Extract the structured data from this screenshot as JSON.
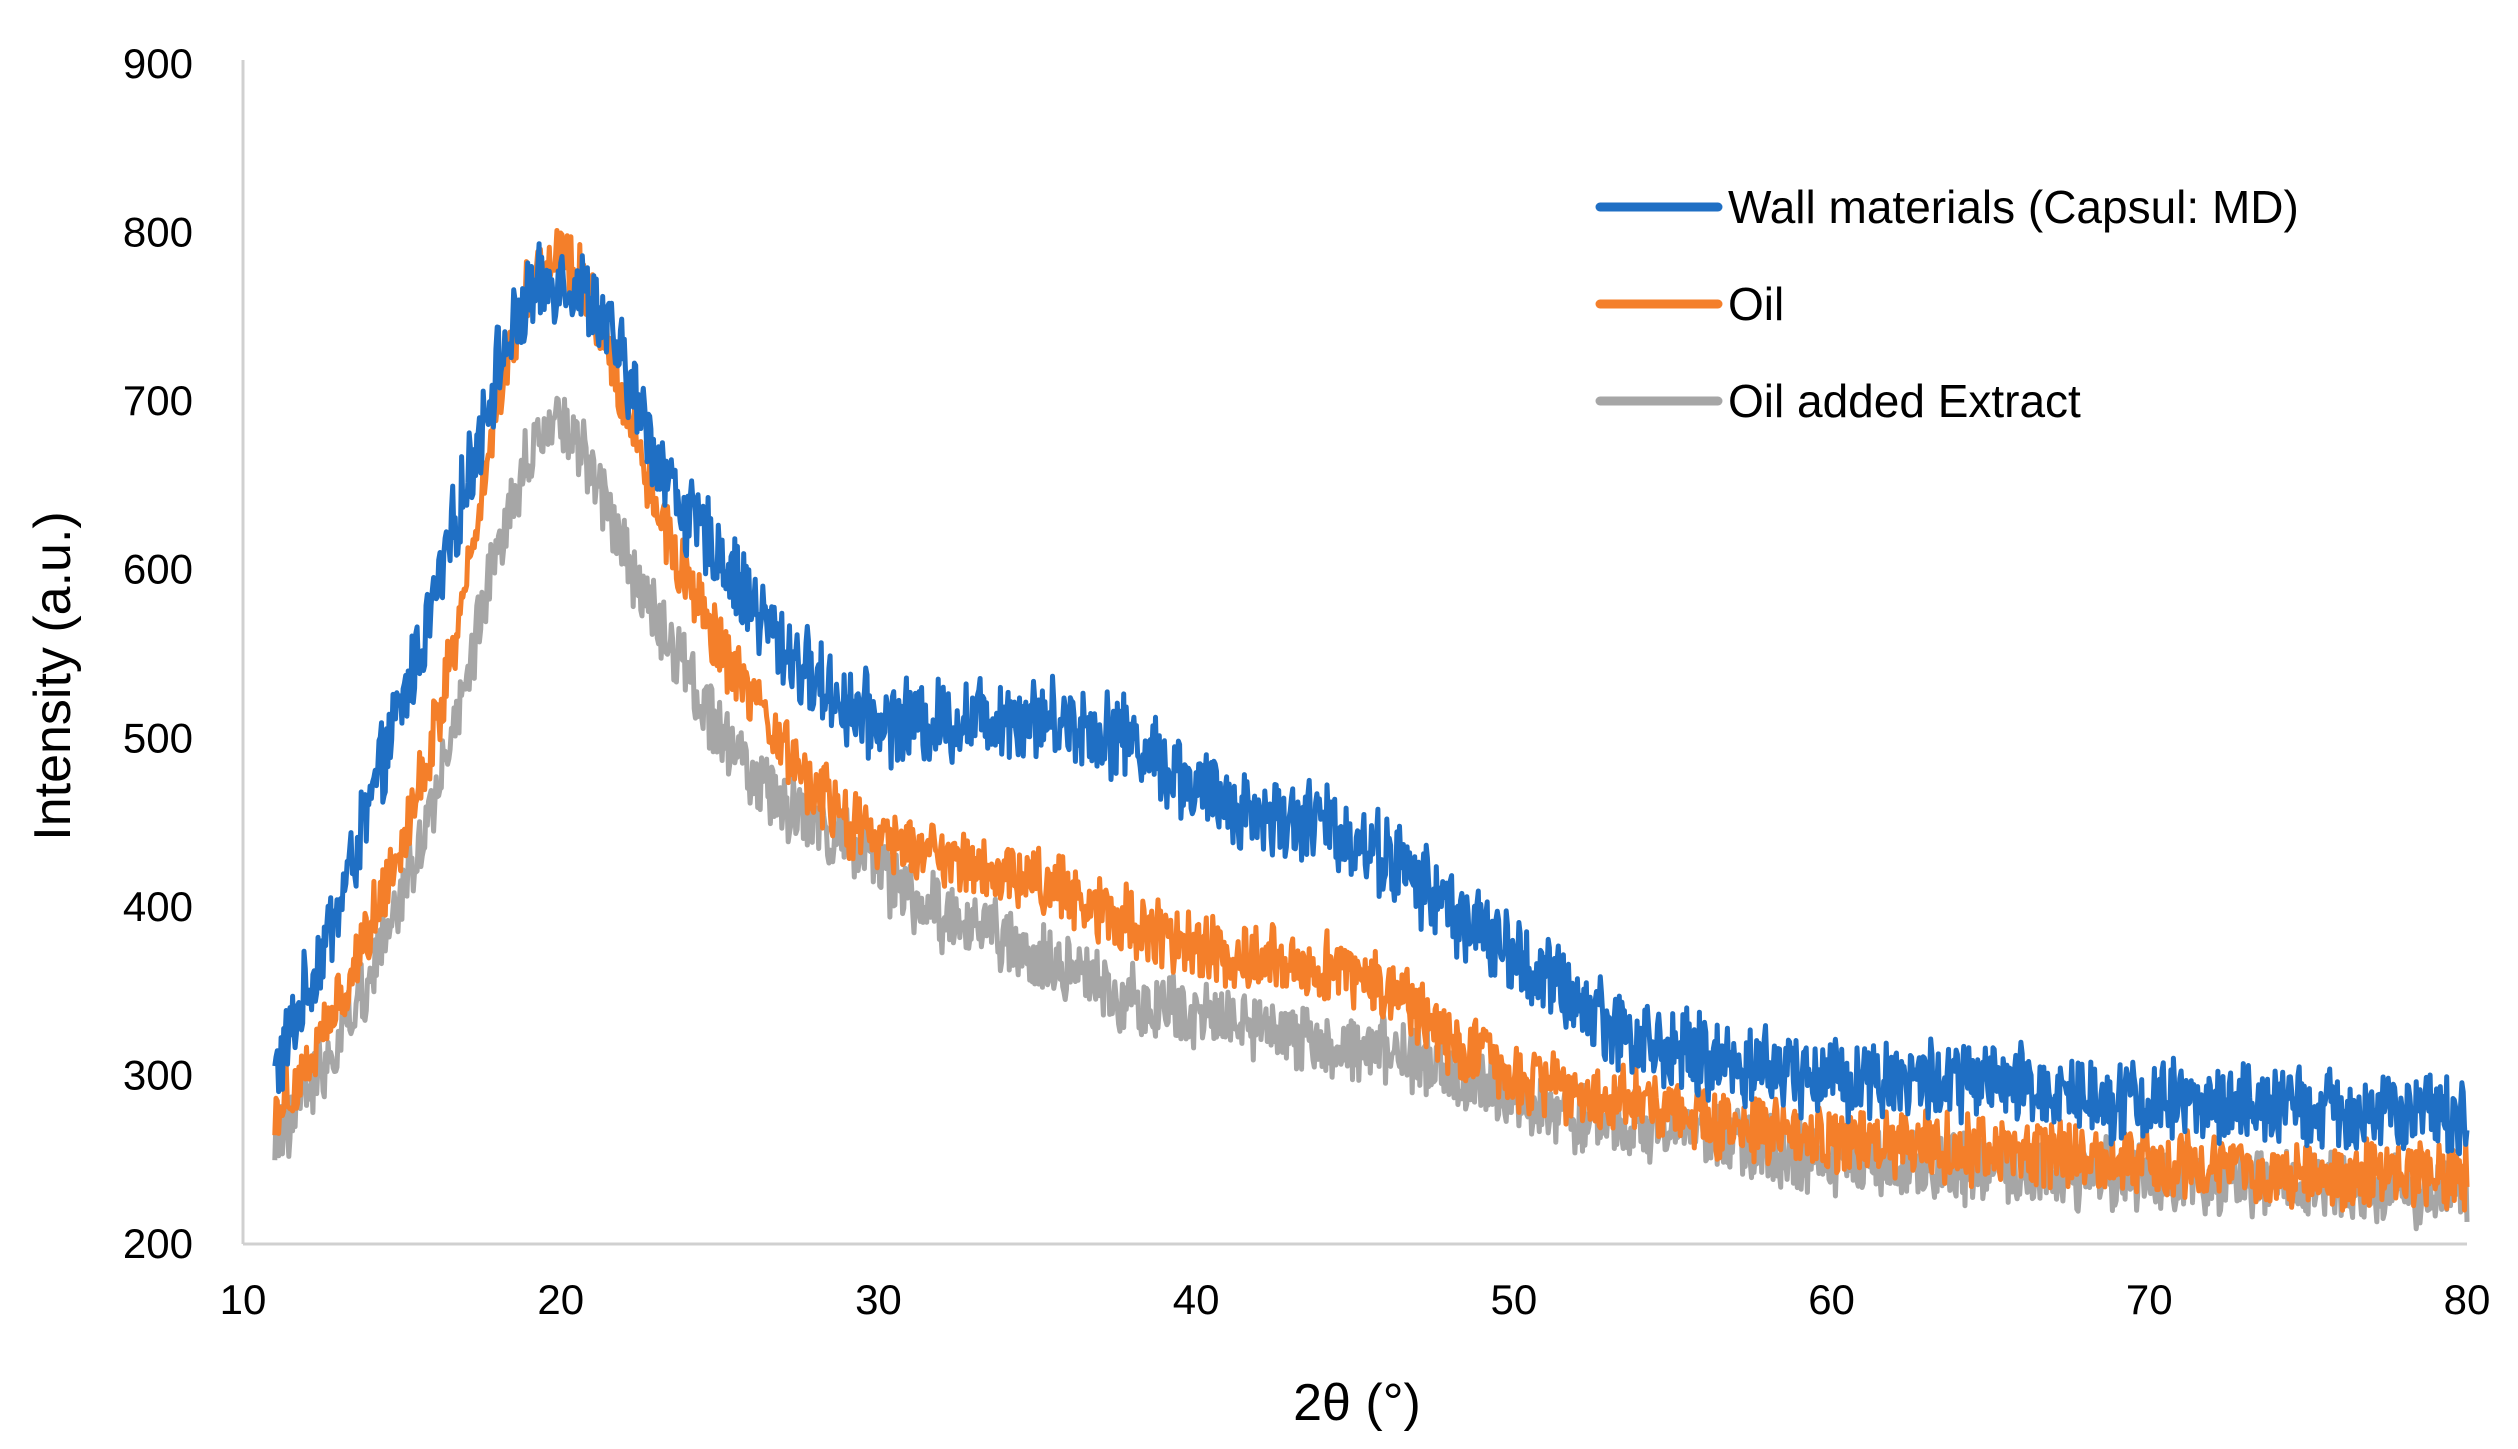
{
  "chart_data": {
    "type": "line",
    "title": "",
    "xlabel": "2θ (°)",
    "ylabel": "Intensity (a.u.)",
    "xlim": [
      10,
      80
    ],
    "ylim": [
      200,
      900
    ],
    "xticks": [
      10,
      20,
      30,
      40,
      50,
      60,
      70,
      80
    ],
    "yticks": [
      200,
      300,
      400,
      500,
      600,
      700,
      800,
      900
    ],
    "grid": false,
    "legend_position": "top-right",
    "x_start": 11,
    "x_end": 80,
    "noise_note": "curves are noisy XRD patterns; anchor points give the mean trend",
    "series": [
      {
        "name": "Wall materials (Capsul: MD)",
        "color": "#1f6fc4",
        "noise": 22,
        "anchors": [
          [
            11,
            300
          ],
          [
            12,
            350
          ],
          [
            13,
            400
          ],
          [
            14,
            460
          ],
          [
            15,
            520
          ],
          [
            16,
            580
          ],
          [
            17,
            650
          ],
          [
            18,
            720
          ],
          [
            19,
            760
          ],
          [
            20,
            775
          ],
          [
            21,
            760
          ],
          [
            22,
            720
          ],
          [
            23,
            670
          ],
          [
            24,
            630
          ],
          [
            25,
            610
          ],
          [
            26,
            580
          ],
          [
            27,
            555
          ],
          [
            28,
            535
          ],
          [
            29,
            520
          ],
          [
            30,
            510
          ],
          [
            32,
            510
          ],
          [
            34,
            515
          ],
          [
            36,
            510
          ],
          [
            38,
            500
          ],
          [
            40,
            470
          ],
          [
            42,
            455
          ],
          [
            44,
            450
          ],
          [
            46,
            430
          ],
          [
            48,
            400
          ],
          [
            50,
            370
          ],
          [
            52,
            345
          ],
          [
            54,
            320
          ],
          [
            56,
            310
          ],
          [
            58,
            305
          ],
          [
            60,
            300
          ],
          [
            65,
            295
          ],
          [
            70,
            285
          ],
          [
            75,
            280
          ],
          [
            80,
            275
          ]
        ]
      },
      {
        "name": "Oil",
        "color": "#f47f2a",
        "noise": 18,
        "anchors": [
          [
            11,
            280
          ],
          [
            12,
            305
          ],
          [
            13,
            340
          ],
          [
            14,
            390
          ],
          [
            15,
            440
          ],
          [
            16,
            500
          ],
          [
            17,
            590
          ],
          [
            18,
            700
          ],
          [
            19,
            770
          ],
          [
            20,
            790
          ],
          [
            21,
            760
          ],
          [
            22,
            700
          ],
          [
            23,
            640
          ],
          [
            24,
            590
          ],
          [
            25,
            555
          ],
          [
            26,
            520
          ],
          [
            27,
            495
          ],
          [
            28,
            470
          ],
          [
            29,
            450
          ],
          [
            30,
            440
          ],
          [
            32,
            430
          ],
          [
            34,
            420
          ],
          [
            36,
            410
          ],
          [
            38,
            390
          ],
          [
            40,
            375
          ],
          [
            42,
            370
          ],
          [
            44,
            365
          ],
          [
            46,
            355
          ],
          [
            48,
            320
          ],
          [
            50,
            300
          ],
          [
            52,
            290
          ],
          [
            54,
            285
          ],
          [
            56,
            275
          ],
          [
            58,
            265
          ],
          [
            60,
            260
          ],
          [
            65,
            255
          ],
          [
            70,
            250
          ],
          [
            75,
            240
          ],
          [
            80,
            240
          ]
        ]
      },
      {
        "name": "Oil added Extract",
        "color": "#a6a6a6",
        "noise": 18,
        "anchors": [
          [
            11,
            260
          ],
          [
            12,
            290
          ],
          [
            13,
            320
          ],
          [
            14,
            360
          ],
          [
            15,
            410
          ],
          [
            16,
            460
          ],
          [
            17,
            530
          ],
          [
            18,
            610
          ],
          [
            19,
            670
          ],
          [
            20,
            690
          ],
          [
            21,
            660
          ],
          [
            22,
            610
          ],
          [
            23,
            570
          ],
          [
            24,
            540
          ],
          [
            25,
            505
          ],
          [
            26,
            475
          ],
          [
            27,
            460
          ],
          [
            28,
            450
          ],
          [
            29,
            440
          ],
          [
            30,
            420
          ],
          [
            32,
            395
          ],
          [
            34,
            380
          ],
          [
            36,
            360
          ],
          [
            38,
            345
          ],
          [
            40,
            335
          ],
          [
            42,
            330
          ],
          [
            44,
            320
          ],
          [
            46,
            315
          ],
          [
            48,
            300
          ],
          [
            50,
            285
          ],
          [
            52,
            275
          ],
          [
            54,
            270
          ],
          [
            56,
            265
          ],
          [
            58,
            255
          ],
          [
            60,
            250
          ],
          [
            65,
            245
          ],
          [
            70,
            240
          ],
          [
            75,
            235
          ],
          [
            80,
            230
          ]
        ]
      }
    ]
  }
}
